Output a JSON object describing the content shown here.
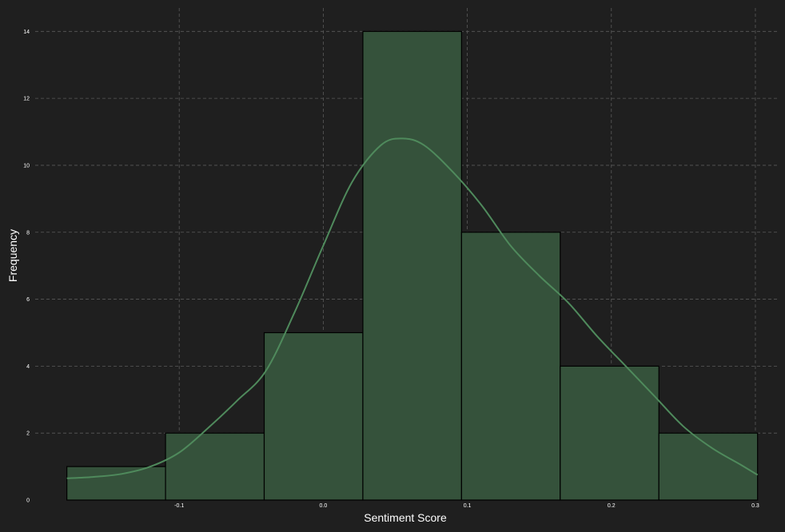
{
  "chart_data": {
    "type": "bar",
    "bins": [
      {
        "x0": -0.178,
        "x1": -0.1095,
        "count": 1
      },
      {
        "x0": -0.1095,
        "x1": -0.041,
        "count": 2
      },
      {
        "x0": -0.041,
        "x1": 0.0275,
        "count": 5
      },
      {
        "x0": 0.0275,
        "x1": 0.096,
        "count": 14
      },
      {
        "x0": 0.096,
        "x1": 0.1645,
        "count": 8
      },
      {
        "x0": 0.1645,
        "x1": 0.233,
        "count": 4
      },
      {
        "x0": 0.233,
        "x1": 0.3015,
        "count": 2
      }
    ],
    "kde": {
      "x": [
        -0.178,
        -0.16,
        -0.14,
        -0.12,
        -0.1,
        -0.08,
        -0.06,
        -0.04,
        -0.02,
        0.0,
        0.02,
        0.04,
        0.055,
        0.07,
        0.09,
        0.11,
        0.13,
        0.15,
        0.17,
        0.19,
        0.21,
        0.23,
        0.25,
        0.27,
        0.29,
        0.3015
      ],
      "y": [
        0.65,
        0.69,
        0.78,
        1.0,
        1.42,
        2.15,
        2.96,
        3.85,
        5.6,
        7.6,
        9.5,
        10.6,
        10.8,
        10.6,
        9.8,
        8.8,
        7.6,
        6.7,
        5.9,
        4.9,
        4.0,
        3.1,
        2.2,
        1.55,
        1.05,
        0.75
      ]
    },
    "xlabel": "Sentiment Score",
    "ylabel": "Frequency",
    "xlim": [
      -0.2,
      0.315
    ],
    "ylim": [
      0,
      14.7
    ],
    "xticks": [
      -0.1,
      0.0,
      0.1,
      0.2,
      0.3
    ],
    "xtick_labels": [
      "-0.1",
      "0.0",
      "0.1",
      "0.2",
      "0.3"
    ],
    "yticks": [
      0,
      2,
      4,
      6,
      8,
      10,
      12,
      14
    ],
    "ytick_labels": [
      "0",
      "2",
      "4",
      "6",
      "8",
      "10",
      "12",
      "14"
    ],
    "grid": true,
    "colors": {
      "background": "#1f1f1f",
      "bar_fill": "#35523b",
      "bar_edge": "#000000",
      "kde_line": "#4f8a5c",
      "text": "#ffffff",
      "grid": "#5a5a5a"
    }
  }
}
